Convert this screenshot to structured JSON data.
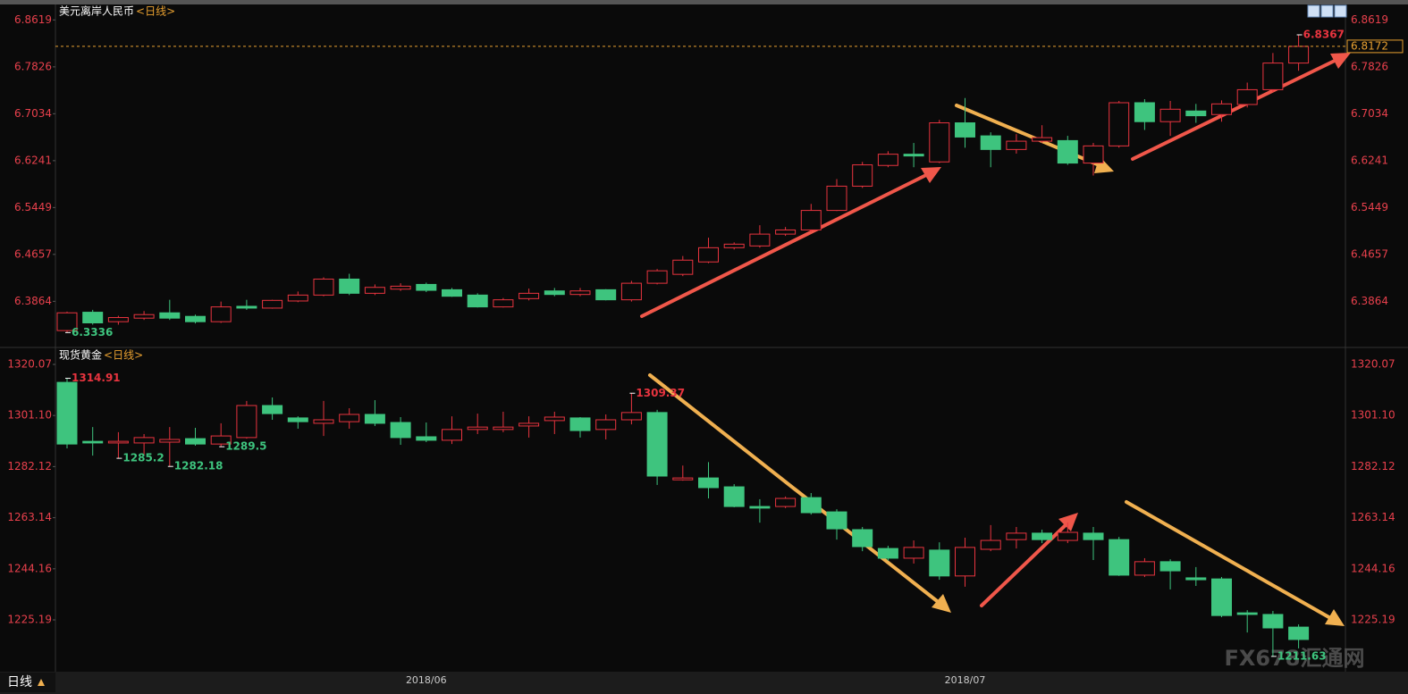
{
  "chart_data": [
    {
      "type": "candlestick",
      "title": "美元离岸人民币",
      "period": "<日线>",
      "up_color": "#e8343f",
      "down_color": "#3ec47e",
      "tick_color": "#e8404c",
      "price_line_color": "#e8a030",
      "ylim": [
        6.31,
        6.888
      ],
      "yticks": [
        6.8619,
        6.7826,
        6.7034,
        6.6241,
        6.5449,
        6.4657,
        6.3864
      ],
      "open": [
        6.337,
        6.368,
        6.352,
        6.358,
        6.367,
        6.361,
        6.352,
        6.378,
        6.375,
        6.387,
        6.397,
        6.424,
        6.4,
        6.407,
        6.415,
        6.406,
        6.397,
        6.377,
        6.391,
        6.404,
        6.398,
        6.406,
        6.389,
        6.417,
        6.432,
        6.453,
        6.477,
        6.48,
        6.5,
        6.507,
        6.54,
        6.581,
        6.616,
        6.635,
        6.622,
        6.688,
        6.666,
        6.643,
        6.657,
        6.658,
        6.62,
        6.649,
        6.722,
        6.69,
        6.708,
        6.702,
        6.719,
        6.744,
        6.789
      ],
      "high": [
        6.369,
        6.372,
        6.362,
        6.37,
        6.389,
        6.364,
        6.386,
        6.389,
        6.389,
        6.403,
        6.427,
        6.433,
        6.415,
        6.417,
        6.418,
        6.409,
        6.4,
        6.392,
        6.408,
        6.409,
        6.409,
        6.407,
        6.421,
        6.441,
        6.463,
        6.494,
        6.486,
        6.515,
        6.512,
        6.551,
        6.593,
        6.622,
        6.64,
        6.654,
        6.693,
        6.73,
        6.672,
        6.669,
        6.684,
        6.666,
        6.654,
        6.725,
        6.728,
        6.725,
        6.72,
        6.726,
        6.756,
        6.806,
        6.8367
      ],
      "low": [
        6.3336,
        6.347,
        6.347,
        6.355,
        6.355,
        6.349,
        6.35,
        6.372,
        6.374,
        6.385,
        6.395,
        6.397,
        6.397,
        6.404,
        6.402,
        6.394,
        6.376,
        6.376,
        6.388,
        6.395,
        6.395,
        6.388,
        6.386,
        6.415,
        6.429,
        6.451,
        6.474,
        6.477,
        6.497,
        6.504,
        6.539,
        6.578,
        6.613,
        6.613,
        6.62,
        6.646,
        6.613,
        6.636,
        6.654,
        6.617,
        6.599,
        6.646,
        6.676,
        6.666,
        6.688,
        6.69,
        6.714,
        6.74,
        6.776
      ],
      "close": [
        6.367,
        6.35,
        6.359,
        6.364,
        6.358,
        6.352,
        6.377,
        6.375,
        6.388,
        6.397,
        6.424,
        6.4,
        6.41,
        6.412,
        6.405,
        6.395,
        6.377,
        6.389,
        6.4,
        6.398,
        6.404,
        6.389,
        6.417,
        6.438,
        6.456,
        6.477,
        6.483,
        6.5,
        6.507,
        6.54,
        6.581,
        6.617,
        6.635,
        6.632,
        6.688,
        6.664,
        6.643,
        6.657,
        6.663,
        6.62,
        6.649,
        6.722,
        6.69,
        6.711,
        6.7,
        6.72,
        6.744,
        6.789,
        6.8172
      ]
    },
    {
      "type": "candlestick",
      "title": "现货黄金",
      "period": "<日线>",
      "up_color": "#e8343f",
      "down_color": "#3ec47e",
      "tick_color": "#e8404c",
      "ylim": [
        1205.95,
        1326.04
      ],
      "yticks": [
        1320.07,
        {
          "value": 1301.1,
          "label": "1301.10"
        },
        1282.12,
        1263.14,
        1244.16,
        1225.19
      ],
      "categories": [
        null,
        null,
        null,
        null,
        null,
        null,
        null,
        null,
        null,
        null,
        null,
        null,
        null,
        null,
        "2018/06",
        null,
        null,
        null,
        null,
        null,
        null,
        null,
        null,
        null,
        null,
        null,
        null,
        null,
        null,
        null,
        null,
        null,
        null,
        null,
        null,
        "2018/07",
        null,
        null,
        null,
        null,
        null,
        null,
        null,
        null,
        null,
        null,
        null,
        null,
        null
      ],
      "open": [
        1313.4,
        1291.5,
        1290.9,
        1290.9,
        1291.2,
        1292.5,
        1290.5,
        1292.9,
        1304.8,
        1300.2,
        1298.2,
        1298.8,
        1301.5,
        1298.5,
        1293.2,
        1291.9,
        1295.9,
        1295.9,
        1297.2,
        1299.2,
        1300.2,
        1295.9,
        1299.5,
        1302.2,
        1277.2,
        1277.9,
        1274.6,
        1267.3,
        1267.3,
        1270.6,
        1265.3,
        1258.7,
        1251.7,
        1248.1,
        1251.1,
        1241.5,
        1251.4,
        1255.0,
        1257.4,
        1254.7,
        1257.4,
        1255.0,
        1241.8,
        1246.8,
        1240.8,
        1240.4,
        1227.8,
        1227.2,
        1222.5
      ],
      "high": [
        1314.91,
        1296.8,
        1294.9,
        1294.2,
        1296.8,
        1296.5,
        1298.2,
        1306.5,
        1307.8,
        1300.8,
        1306.5,
        1303.8,
        1306.8,
        1300.5,
        1298.5,
        1300.8,
        1301.8,
        1302.5,
        1300.8,
        1302.5,
        1300.5,
        1301.5,
        1309.37,
        1303.2,
        1282.5,
        1283.8,
        1275.6,
        1270.0,
        1271.0,
        1272.3,
        1266.3,
        1259.7,
        1252.7,
        1254.7,
        1254.0,
        1255.7,
        1260.4,
        1259.7,
        1258.7,
        1261.4,
        1259.7,
        1256.0,
        1248.1,
        1247.7,
        1244.8,
        1241.1,
        1228.8,
        1228.5,
        1223.5
      ],
      "low": [
        1288.9,
        1286.2,
        1285.2,
        1286.2,
        1282.18,
        1289.9,
        1289.5,
        1292.5,
        1299.5,
        1296.2,
        1293.5,
        1296.2,
        1297.2,
        1290.2,
        1291.2,
        1290.5,
        1294.2,
        1294.9,
        1292.9,
        1294.2,
        1292.9,
        1292.2,
        1297.8,
        1275.3,
        1276.9,
        1270.3,
        1267.0,
        1261.3,
        1266.7,
        1264.3,
        1255.0,
        1250.7,
        1247.1,
        1246.1,
        1240.1,
        1237.5,
        1250.7,
        1251.7,
        1253.7,
        1253.7,
        1247.4,
        1241.5,
        1241.1,
        1236.5,
        1237.8,
        1226.2,
        1220.5,
        1211.63,
        1214.6
      ],
      "close": [
        1290.5,
        1290.9,
        1291.5,
        1292.9,
        1292.2,
        1290.5,
        1293.5,
        1304.8,
        1301.8,
        1298.8,
        1299.5,
        1301.5,
        1298.2,
        1292.9,
        1291.9,
        1295.9,
        1296.8,
        1296.8,
        1298.2,
        1300.5,
        1295.5,
        1299.5,
        1302.2,
        1278.6,
        1277.9,
        1274.3,
        1267.3,
        1266.7,
        1270.3,
        1265.0,
        1259.0,
        1252.4,
        1248.1,
        1252.1,
        1241.5,
        1252.1,
        1254.7,
        1257.4,
        1255.0,
        1257.7,
        1255.0,
        1241.8,
        1246.8,
        1243.4,
        1240.1,
        1226.8,
        1227.2,
        1222.2,
        1217.9
      ]
    }
  ],
  "period_button": "日线",
  "watermark": "FX678汇通网"
}
